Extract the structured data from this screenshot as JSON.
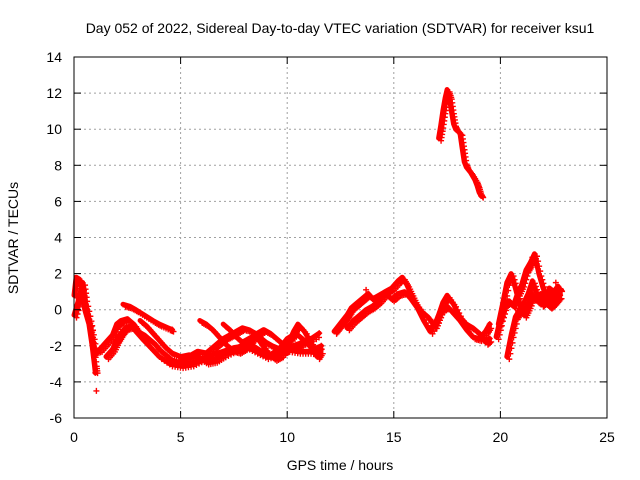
{
  "chart_data": {
    "type": "scatter",
    "title": "Day 052 of 2022, Sidereal Day-to-day VTEC variation (SDTVAR) for receiver ksu1",
    "xlabel": "GPS time / hours",
    "ylabel": "SDTVAR / TECUs",
    "xlim": [
      0,
      25
    ],
    "ylim": [
      -6,
      14
    ],
    "xticks": [
      0,
      5,
      10,
      15,
      20,
      25
    ],
    "yticks": [
      -6,
      -4,
      -2,
      0,
      2,
      4,
      6,
      8,
      10,
      12,
      14
    ],
    "grid": true,
    "legend": "none",
    "marker": "+",
    "series_color": "#ff0000",
    "tracks": [
      [
        [
          0.0,
          0.8
        ],
        [
          0.1,
          1.8
        ],
        [
          0.25,
          1.7
        ],
        [
          0.35,
          1.2
        ],
        [
          0.5,
          0.0
        ],
        [
          0.7,
          -0.8
        ],
        [
          0.85,
          -2.0
        ],
        [
          0.95,
          -3.0
        ],
        [
          1.0,
          -3.5
        ]
      ],
      [
        [
          0.0,
          -0.3
        ],
        [
          0.2,
          0.5
        ],
        [
          0.4,
          1.5
        ],
        [
          0.5,
          0.6
        ],
        [
          0.7,
          -0.5
        ],
        [
          0.85,
          -1.5
        ],
        [
          1.0,
          -2.5
        ]
      ],
      [
        [
          0.9,
          -2.3
        ],
        [
          1.2,
          -2.2
        ],
        [
          1.5,
          -1.8
        ],
        [
          1.8,
          -1.4
        ],
        [
          2.0,
          -0.8
        ],
        [
          2.2,
          -0.6
        ],
        [
          2.5,
          -0.5
        ],
        [
          2.8,
          -0.8
        ],
        [
          3.0,
          -1.2
        ],
        [
          3.3,
          -1.4
        ],
        [
          3.5,
          -1.6
        ],
        [
          3.8,
          -1.9
        ],
        [
          4.0,
          -2.2
        ],
        [
          4.3,
          -2.5
        ],
        [
          4.6,
          -2.8
        ],
        [
          4.9,
          -2.9
        ],
        [
          5.2,
          -2.8
        ],
        [
          5.5,
          -2.5
        ],
        [
          5.8,
          -2.3
        ],
        [
          6.2,
          -2.4
        ],
        [
          6.5,
          -2.1
        ],
        [
          6.8,
          -1.8
        ],
        [
          7.0,
          -1.6
        ],
        [
          7.3,
          -1.4
        ],
        [
          7.6,
          -1.2
        ],
        [
          7.9,
          -1.0
        ],
        [
          8.2,
          -1.1
        ],
        [
          8.5,
          -1.3
        ],
        [
          8.8,
          -1.6
        ],
        [
          9.0,
          -1.8
        ],
        [
          9.3,
          -2.0
        ],
        [
          9.5,
          -2.1
        ],
        [
          9.8,
          -2.3
        ],
        [
          10.0,
          -2.2
        ],
        [
          10.5,
          -2.3
        ],
        [
          11.0,
          -2.3
        ],
        [
          11.5,
          -2.4
        ]
      ],
      [
        [
          1.5,
          -2.6
        ],
        [
          1.8,
          -2.2
        ],
        [
          2.0,
          -1.7
        ],
        [
          2.2,
          -1.3
        ],
        [
          2.4,
          -1.0
        ],
        [
          2.7,
          -0.9
        ],
        [
          2.9,
          -1.2
        ],
        [
          3.2,
          -1.6
        ],
        [
          3.6,
          -2.1
        ],
        [
          4.0,
          -2.6
        ],
        [
          4.5,
          -3.0
        ],
        [
          5.0,
          -3.1
        ],
        [
          5.5,
          -3.0
        ],
        [
          6.0,
          -2.7
        ],
        [
          6.5,
          -2.5
        ],
        [
          7.0,
          -2.3
        ],
        [
          7.5,
          -2.1
        ],
        [
          8.0,
          -2.0
        ],
        [
          8.5,
          -2.3
        ],
        [
          9.0,
          -2.6
        ],
        [
          9.5,
          -2.4
        ],
        [
          10.0,
          -2.1
        ],
        [
          10.5,
          -1.9
        ],
        [
          11.0,
          -1.7
        ],
        [
          11.5,
          -1.3
        ]
      ],
      [
        [
          2.3,
          0.3
        ],
        [
          2.6,
          0.2
        ],
        [
          2.9,
          0.0
        ],
        [
          3.3,
          -0.3
        ],
        [
          3.7,
          -0.6
        ],
        [
          4.0,
          -0.8
        ],
        [
          4.4,
          -1.0
        ],
        [
          4.6,
          -1.1
        ]
      ],
      [
        [
          3.1,
          -0.6
        ],
        [
          3.4,
          -0.9
        ],
        [
          3.7,
          -1.3
        ],
        [
          4.0,
          -1.7
        ],
        [
          4.3,
          -2.1
        ],
        [
          4.6,
          -2.4
        ],
        [
          5.0,
          -2.6
        ],
        [
          5.4,
          -2.5
        ],
        [
          5.8,
          -2.6
        ],
        [
          6.2,
          -2.9
        ],
        [
          6.6,
          -2.8
        ],
        [
          7.0,
          -2.5
        ],
        [
          7.5,
          -2.2
        ],
        [
          8.0,
          -1.9
        ],
        [
          8.4,
          -2.0
        ],
        [
          8.8,
          -2.3
        ],
        [
          9.2,
          -2.5
        ],
        [
          9.6,
          -2.2
        ],
        [
          10.0,
          -1.6
        ],
        [
          10.4,
          -1.3
        ],
        [
          10.8,
          -1.7
        ],
        [
          11.2,
          -2.2
        ],
        [
          11.6,
          -2.0
        ]
      ],
      [
        [
          5.9,
          -0.6
        ],
        [
          6.2,
          -0.8
        ],
        [
          6.5,
          -1.1
        ],
        [
          6.8,
          -1.5
        ],
        [
          7.1,
          -1.9
        ],
        [
          7.4,
          -2.2
        ],
        [
          7.7,
          -2.3
        ],
        [
          8.0,
          -2.1
        ],
        [
          8.3,
          -1.7
        ],
        [
          8.6,
          -1.3
        ],
        [
          8.9,
          -1.1
        ],
        [
          9.2,
          -1.3
        ],
        [
          9.5,
          -1.6
        ],
        [
          9.8,
          -1.9
        ],
        [
          10.1,
          -2.1
        ],
        [
          10.4,
          -2.0
        ],
        [
          10.7,
          -1.9
        ]
      ],
      [
        [
          7.0,
          -0.8
        ],
        [
          7.3,
          -1.1
        ],
        [
          7.6,
          -1.5
        ],
        [
          7.9,
          -1.8
        ],
        [
          8.2,
          -1.6
        ],
        [
          8.5,
          -1.4
        ],
        [
          8.8,
          -1.9
        ],
        [
          9.1,
          -2.4
        ],
        [
          9.4,
          -2.7
        ],
        [
          9.7,
          -2.5
        ],
        [
          10.0,
          -2.0
        ],
        [
          10.3,
          -1.2
        ],
        [
          10.5,
          -0.8
        ],
        [
          10.8,
          -1.2
        ],
        [
          11.1,
          -1.8
        ],
        [
          11.4,
          -2.6
        ],
        [
          11.6,
          -2.2
        ]
      ],
      [
        [
          12.2,
          -1.2
        ],
        [
          12.4,
          -0.9
        ],
        [
          12.6,
          -0.6
        ],
        [
          12.8,
          -0.3
        ],
        [
          13.0,
          0.1
        ],
        [
          13.2,
          0.3
        ],
        [
          13.4,
          0.5
        ],
        [
          13.6,
          0.7
        ],
        [
          13.8,
          0.9
        ],
        [
          14.0,
          0.6
        ],
        [
          14.3,
          0.8
        ],
        [
          14.6,
          1.0
        ],
        [
          14.9,
          1.2
        ],
        [
          15.2,
          1.6
        ],
        [
          15.4,
          1.8
        ],
        [
          15.6,
          1.4
        ],
        [
          15.8,
          0.9
        ],
        [
          16.0,
          0.4
        ],
        [
          16.3,
          -0.1
        ],
        [
          16.6,
          -0.4
        ],
        [
          16.9,
          -0.9
        ],
        [
          17.1,
          -0.3
        ],
        [
          17.3,
          0.4
        ],
        [
          17.5,
          0.8
        ],
        [
          17.8,
          0.3
        ],
        [
          18.1,
          -0.4
        ],
        [
          18.4,
          -0.8
        ],
        [
          18.7,
          -1.0
        ],
        [
          19.0,
          -1.3
        ],
        [
          19.3,
          -1.8
        ],
        [
          19.5,
          -1.6
        ]
      ],
      [
        [
          12.8,
          -1.0
        ],
        [
          13.1,
          -0.6
        ],
        [
          13.4,
          -0.3
        ],
        [
          13.7,
          0.0
        ],
        [
          14.0,
          0.2
        ],
        [
          14.3,
          0.5
        ],
        [
          14.6,
          0.9
        ],
        [
          14.9,
          0.6
        ],
        [
          15.2,
          0.9
        ],
        [
          15.5,
          1.0
        ],
        [
          15.8,
          0.6
        ],
        [
          16.1,
          0.1
        ],
        [
          16.4,
          -0.6
        ],
        [
          16.7,
          -1.2
        ],
        [
          17.0,
          -0.6
        ],
        [
          17.2,
          0.0
        ],
        [
          17.5,
          0.2
        ],
        [
          17.8,
          -0.2
        ],
        [
          18.1,
          -0.6
        ],
        [
          18.4,
          -1.1
        ],
        [
          18.7,
          -1.5
        ],
        [
          19.0,
          -1.6
        ],
        [
          19.3,
          -1.2
        ],
        [
          19.5,
          -0.8
        ]
      ],
      [
        [
          17.1,
          9.5
        ],
        [
          17.2,
          10.2
        ],
        [
          17.3,
          11.0
        ],
        [
          17.4,
          11.7
        ],
        [
          17.5,
          12.2
        ],
        [
          17.6,
          11.8
        ],
        [
          17.7,
          11.0
        ],
        [
          17.8,
          10.3
        ],
        [
          17.9,
          10.0
        ],
        [
          18.1,
          9.8
        ],
        [
          18.2,
          9.0
        ],
        [
          18.3,
          8.2
        ],
        [
          18.4,
          7.9
        ],
        [
          18.6,
          7.6
        ],
        [
          18.8,
          7.2
        ],
        [
          18.9,
          6.9
        ],
        [
          19.0,
          6.5
        ],
        [
          19.1,
          6.3
        ]
      ],
      [
        [
          19.8,
          -1.5
        ],
        [
          20.0,
          -0.5
        ],
        [
          20.2,
          0.3
        ],
        [
          20.4,
          0.5
        ],
        [
          20.6,
          0.2
        ],
        [
          20.8,
          0.9
        ],
        [
          21.0,
          1.4
        ],
        [
          21.2,
          2.2
        ],
        [
          21.4,
          2.6
        ],
        [
          21.6,
          3.1
        ],
        [
          21.8,
          2.0
        ],
        [
          22.0,
          1.2
        ],
        [
          22.2,
          0.6
        ],
        [
          22.4,
          0.9
        ],
        [
          22.6,
          0.6
        ],
        [
          22.8,
          0.8
        ]
      ],
      [
        [
          20.3,
          -2.6
        ],
        [
          20.5,
          -1.4
        ],
        [
          20.7,
          -0.4
        ],
        [
          20.9,
          0.0
        ],
        [
          21.1,
          0.4
        ],
        [
          21.3,
          0.9
        ],
        [
          21.5,
          1.6
        ],
        [
          21.7,
          0.9
        ],
        [
          21.9,
          0.3
        ],
        [
          22.1,
          0.5
        ],
        [
          22.3,
          1.2
        ],
        [
          22.5,
          1.0
        ],
        [
          22.7,
          1.3
        ],
        [
          22.8,
          1.1
        ]
      ],
      [
        [
          19.9,
          -0.8
        ],
        [
          20.1,
          0.3
        ],
        [
          20.3,
          1.5
        ],
        [
          20.5,
          2.0
        ],
        [
          20.7,
          1.2
        ],
        [
          20.9,
          0.3
        ],
        [
          21.1,
          -0.3
        ],
        [
          21.3,
          0.2
        ],
        [
          21.5,
          0.8
        ],
        [
          21.7,
          0.5
        ],
        [
          21.9,
          0.9
        ],
        [
          22.1,
          0.4
        ],
        [
          22.3,
          0.2
        ],
        [
          22.5,
          0.4
        ],
        [
          22.7,
          0.7
        ]
      ]
    ],
    "isolated_points": [
      [
        1.05,
        -4.5
      ],
      [
        0.55,
        0.1
      ],
      [
        13.7,
        1.1
      ],
      [
        21.5,
        2.9
      ],
      [
        22.6,
        1.5
      ],
      [
        17.0,
        -0.6
      ]
    ]
  }
}
